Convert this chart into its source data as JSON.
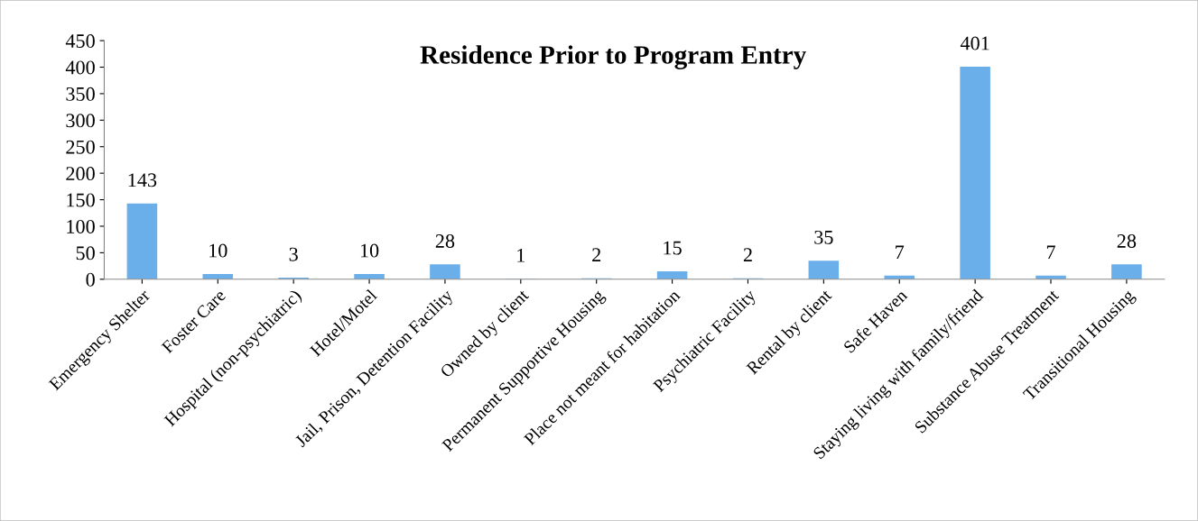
{
  "chart_data": {
    "type": "bar",
    "title": "Residence Prior to Program Entry",
    "categories": [
      "Emergency Shelter",
      "Foster Care",
      "Hospital (non-psychiatric)",
      "Hotel/Motel",
      "Jail, Prison, Detention Facility",
      "Owned by client",
      "Permanent Supportive Housing",
      "Place not meant for habitation",
      "Psychiatric Facility",
      "Rental by client",
      "Safe Haven",
      "Staying living with family/friend",
      "Substance Abuse Treatment",
      "Transitional Housing"
    ],
    "values": [
      143,
      10,
      3,
      10,
      28,
      1,
      2,
      15,
      2,
      35,
      7,
      401,
      7,
      28
    ],
    "color": "#6aaeea",
    "ylim": [
      0,
      450
    ],
    "yticks": [
      0,
      50,
      100,
      150,
      200,
      250,
      300,
      350,
      400,
      450
    ],
    "grid": false,
    "legend": false,
    "data_labels": true
  }
}
